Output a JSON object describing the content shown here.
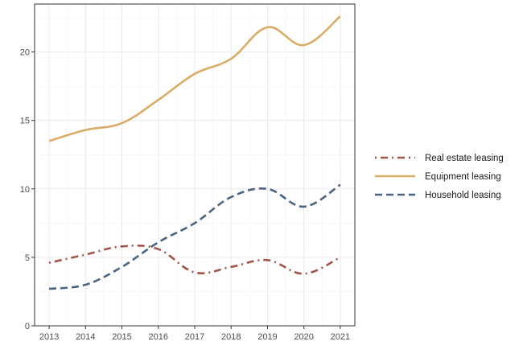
{
  "chart_data": {
    "type": "line",
    "title": "",
    "xlabel": "",
    "ylabel": "",
    "x": [
      2013,
      2014,
      2015,
      2016,
      2017,
      2018,
      2019,
      2020,
      2021
    ],
    "ylim": [
      0,
      23.5
    ],
    "y_ticks": [
      0,
      5,
      10,
      15,
      20
    ],
    "grid": true,
    "legend_position": "right",
    "series": [
      {
        "name": "Real estate leasing",
        "color": "#a0554a",
        "dash": "dot-dash",
        "values": [
          4.6,
          5.2,
          5.8,
          5.6,
          3.9,
          4.3,
          4.8,
          3.8,
          5.0
        ]
      },
      {
        "name": "Equipment leasing",
        "color": "#d9ad67",
        "dash": "solid",
        "values": [
          13.5,
          14.3,
          14.8,
          16.5,
          18.4,
          19.5,
          21.8,
          20.5,
          22.6
        ]
      },
      {
        "name": "Household leasing",
        "color": "#4b6580",
        "dash": "dashed",
        "values": [
          2.7,
          3.0,
          4.3,
          6.1,
          7.5,
          9.4,
          10.0,
          8.7,
          10.3
        ]
      }
    ]
  }
}
